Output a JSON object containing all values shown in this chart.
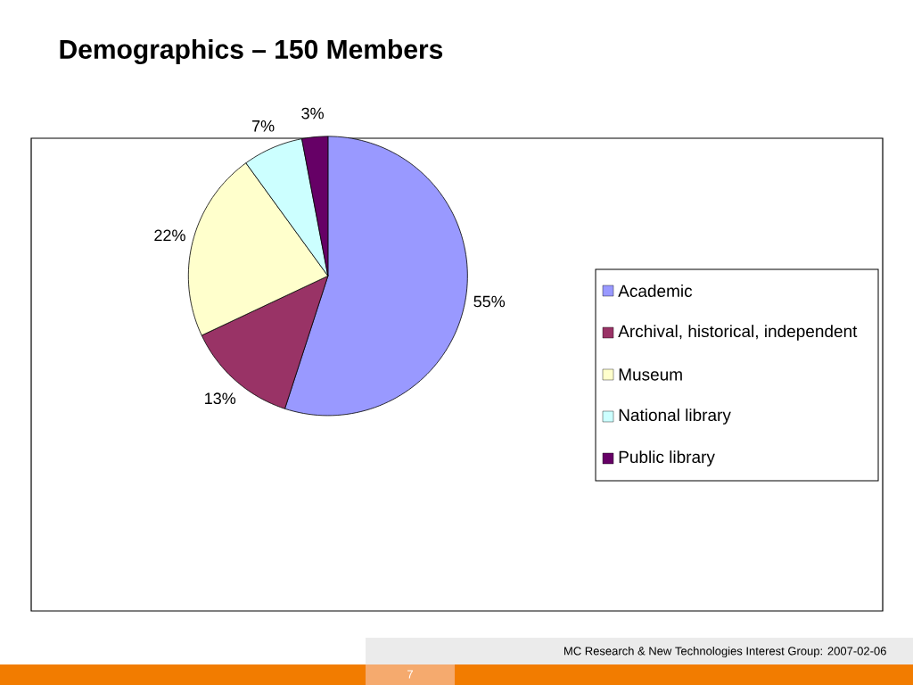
{
  "chart_data": {
    "type": "pie",
    "title": "Demographics – 150 Members",
    "categories": [
      "Academic",
      "Archival, historical, independent",
      "Museum",
      "National library",
      "Public library"
    ],
    "values": [
      55,
      13,
      22,
      7,
      3
    ],
    "colors": [
      "#9999ff",
      "#993366",
      "#ffffcc",
      "#ccffff",
      "#660066"
    ],
    "value_labels": [
      "55%",
      "13%",
      "22%",
      "7%",
      "3%"
    ],
    "legend": "right",
    "annotations": [
      "MC Research & New Technologies Interest Group: 2007-02-06",
      "7"
    ]
  }
}
